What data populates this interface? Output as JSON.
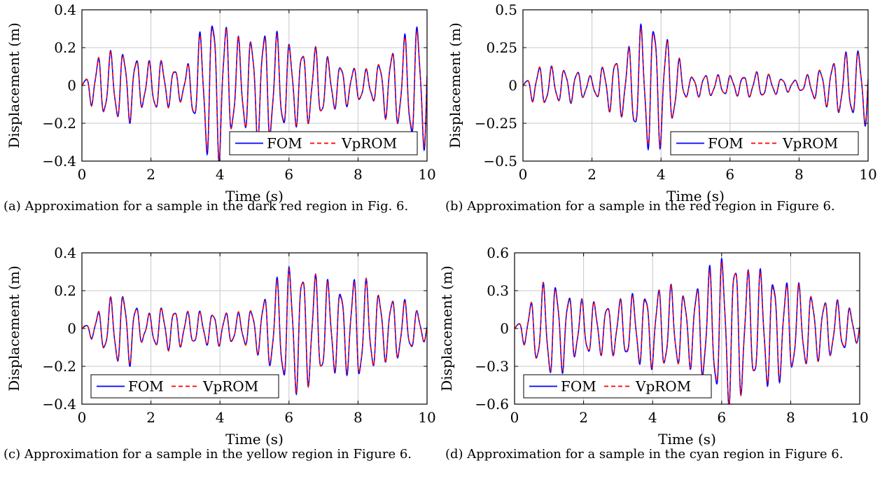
{
  "chart_data": [
    {
      "type": "line",
      "caption": "(a) Approximation for a sample in the dark red region in Fig. 6.",
      "xlabel": "Time (s)",
      "ylabel": "Displacement (m)",
      "xlim": [
        0,
        10
      ],
      "ylim": [
        -0.4,
        0.4
      ],
      "xticks": [
        0,
        2,
        4,
        6,
        8,
        10
      ],
      "yticks": [
        -0.4,
        -0.2,
        0,
        0.2,
        0.4
      ],
      "ytick_labels": [
        "−0.4",
        "−0.2",
        "0",
        "0.2",
        "0.4"
      ],
      "grid": true,
      "legend_position": "bottom-right",
      "series": [
        {
          "name": "FOM",
          "color": "#0000ff",
          "style": "solid"
        },
        {
          "name": "VpROM",
          "color": "#ff0000",
          "style": "dashed"
        }
      ],
      "envelope": {
        "t": [
          0,
          0.3,
          0.5,
          0.9,
          1.4,
          1.8,
          2.2,
          2.6,
          3.0,
          3.3,
          3.7,
          4.0,
          4.4,
          4.8,
          5.2,
          5.6,
          6.0,
          6.4,
          6.8,
          7.2,
          7.6,
          8.0,
          8.4,
          8.8,
          9.2,
          9.6,
          10
        ],
        "amp": [
          0.0,
          0.1,
          0.14,
          0.16,
          0.17,
          0.1,
          0.13,
          0.09,
          0.07,
          0.2,
          0.36,
          0.35,
          0.22,
          0.22,
          0.28,
          0.25,
          0.2,
          0.18,
          0.18,
          0.12,
          0.1,
          0.08,
          0.07,
          0.15,
          0.2,
          0.28,
          0.3
        ]
      },
      "frequency_hz": 2.7
    },
    {
      "type": "line",
      "caption": "(b) Approximation for a sample in the red region in Figure 6.",
      "xlabel": "Time (s)",
      "ylabel": "Displacement (m)",
      "xlim": [
        0,
        10
      ],
      "ylim": [
        -0.5,
        0.5
      ],
      "xticks": [
        0,
        2,
        4,
        6,
        8,
        10
      ],
      "yticks": [
        -0.5,
        -0.25,
        0,
        0.25,
        0.5
      ],
      "ytick_labels": [
        "−0.5",
        "−0.25",
        "0",
        "0.25",
        "0.5"
      ],
      "grid": true,
      "legend_position": "bottom-right",
      "series": [
        {
          "name": "FOM",
          "color": "#0000ff",
          "style": "solid"
        },
        {
          "name": "VpROM",
          "color": "#ff0000",
          "style": "dashed"
        }
      ],
      "envelope": {
        "t": [
          0,
          0.3,
          0.6,
          1.0,
          1.5,
          2.0,
          2.5,
          3.0,
          3.4,
          3.8,
          4.1,
          4.4,
          4.8,
          5.2,
          5.6,
          6.0,
          6.4,
          6.8,
          7.2,
          7.6,
          8.0,
          8.4,
          8.8,
          9.2,
          9.6,
          10
        ],
        "amp": [
          0.0,
          0.1,
          0.12,
          0.1,
          0.1,
          0.05,
          0.15,
          0.2,
          0.35,
          0.41,
          0.32,
          0.2,
          0.05,
          0.07,
          0.06,
          0.06,
          0.06,
          0.08,
          0.06,
          0.04,
          0.03,
          0.08,
          0.12,
          0.18,
          0.2,
          0.24
        ]
      },
      "frequency_hz": 2.7
    },
    {
      "type": "line",
      "caption": "(c) Approximation for a sample in the yellow region in Figure 6.",
      "xlabel": "Time (s)",
      "ylabel": "Displacement (m)",
      "xlim": [
        0,
        10
      ],
      "ylim": [
        -0.4,
        0.4
      ],
      "xticks": [
        0,
        2,
        4,
        6,
        8,
        10
      ],
      "yticks": [
        -0.4,
        -0.2,
        0,
        0.2,
        0.4
      ],
      "ytick_labels": [
        "−0.4",
        "−0.2",
        "0",
        "0.2",
        "0.4"
      ],
      "grid": true,
      "legend_position": "bottom-left",
      "series": [
        {
          "name": "FOM",
          "color": "#0000ff",
          "style": "solid"
        },
        {
          "name": "VpROM",
          "color": "#ff0000",
          "style": "dashed"
        }
      ],
      "envelope": {
        "t": [
          0,
          0.3,
          0.7,
          1.0,
          1.4,
          1.8,
          2.2,
          2.6,
          3.0,
          3.5,
          4.0,
          4.5,
          5.0,
          5.5,
          6.0,
          6.3,
          6.8,
          7.2,
          7.6,
          8.0,
          8.4,
          8.8,
          9.2,
          9.6,
          10
        ],
        "amp": [
          0.0,
          0.05,
          0.12,
          0.17,
          0.17,
          0.05,
          0.1,
          0.1,
          0.08,
          0.08,
          0.08,
          0.07,
          0.1,
          0.2,
          0.3,
          0.3,
          0.25,
          0.22,
          0.2,
          0.26,
          0.2,
          0.15,
          0.15,
          0.1,
          0.05
        ]
      },
      "frequency_hz": 2.7
    },
    {
      "type": "line",
      "caption": "(d) Approximation for a sample in the cyan region in Figure 6.",
      "xlabel": "Time (s)",
      "ylabel": "Displacement (m)",
      "xlim": [
        0,
        10
      ],
      "ylim": [
        -0.6,
        0.6
      ],
      "xticks": [
        0,
        2,
        4,
        6,
        8,
        10
      ],
      "yticks": [
        -0.6,
        -0.3,
        0,
        0.3,
        0.6
      ],
      "ytick_labels": [
        "−0.6",
        "−0.3",
        "0",
        "0.3",
        "0.6"
      ],
      "grid": true,
      "legend_position": "bottom-left",
      "series": [
        {
          "name": "FOM",
          "color": "#0000ff",
          "style": "solid"
        },
        {
          "name": "VpROM",
          "color": "#ff0000",
          "style": "dashed"
        }
      ],
      "envelope": {
        "t": [
          0,
          0.3,
          0.7,
          1.0,
          1.4,
          1.8,
          2.2,
          2.6,
          3.0,
          3.5,
          4.0,
          4.5,
          5.0,
          5.5,
          5.9,
          6.3,
          6.8,
          7.3,
          7.8,
          8.3,
          8.8,
          9.3,
          9.7,
          10
        ],
        "amp": [
          0.0,
          0.12,
          0.28,
          0.35,
          0.3,
          0.2,
          0.2,
          0.18,
          0.2,
          0.25,
          0.28,
          0.3,
          0.25,
          0.38,
          0.5,
          0.55,
          0.4,
          0.42,
          0.35,
          0.3,
          0.22,
          0.2,
          0.15,
          0.08
        ]
      },
      "frequency_hz": 2.7
    }
  ]
}
